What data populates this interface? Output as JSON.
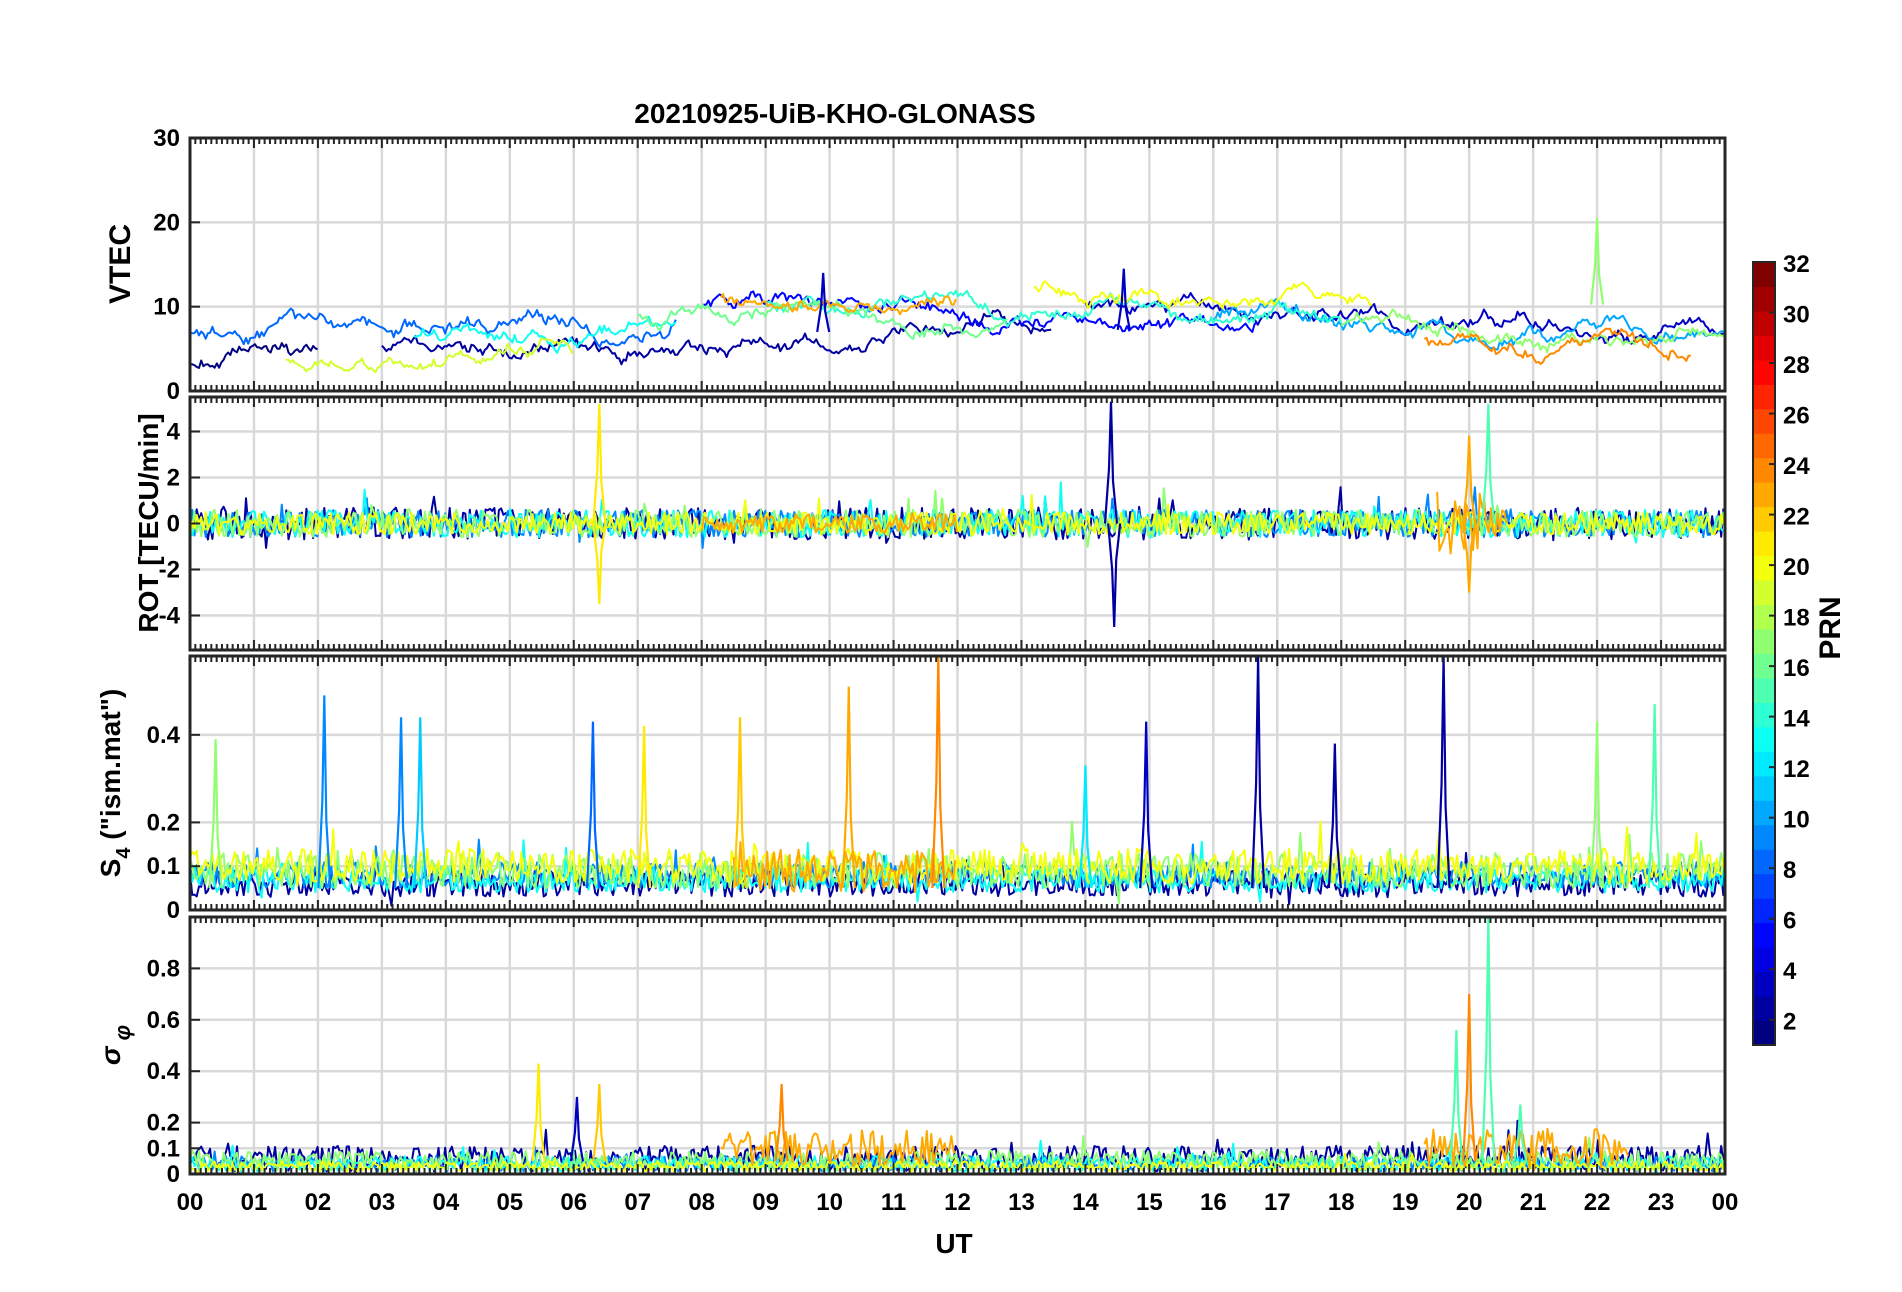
{
  "chart_data": {
    "type": "line",
    "title": "20210925-UiB-KHO-GLONASS",
    "xlabel": "UT",
    "x_tick_labels": [
      "00",
      "01",
      "02",
      "03",
      "04",
      "05",
      "06",
      "07",
      "08",
      "09",
      "10",
      "11",
      "12",
      "13",
      "14",
      "15",
      "16",
      "17",
      "18",
      "19",
      "20",
      "21",
      "22",
      "23",
      "00"
    ],
    "xlim_hours": [
      0,
      24
    ],
    "grid": true,
    "colorbar": {
      "label": "PRN",
      "range": [
        1,
        32
      ],
      "tick_labels": [
        "2",
        "4",
        "6",
        "8",
        "10",
        "12",
        "14",
        "16",
        "18",
        "20",
        "22",
        "24",
        "26",
        "28",
        "30",
        "32"
      ],
      "colormap": [
        "#00008f",
        "#0000ff",
        "#0080ff",
        "#00ffff",
        "#80ff80",
        "#ffff00",
        "#ff8000",
        "#ff0000",
        "#800000"
      ]
    },
    "panels": [
      {
        "id": "vtec",
        "ylabel": "VTEC",
        "ylim": [
          0,
          30
        ],
        "y_ticks": [
          0,
          10,
          20,
          30
        ],
        "y_tick_labels": [
          "0",
          "10",
          "20",
          "30"
        ],
        "series": [
          {
            "prn": 1,
            "kind": "smooth",
            "base": 3,
            "start": 0.0,
            "end": 2.0,
            "seed": 11
          },
          {
            "prn": 2,
            "kind": "smooth",
            "base": 5,
            "start": 3.0,
            "end": 13.5,
            "seed": 12
          },
          {
            "prn": 3,
            "kind": "smooth",
            "base": 9,
            "start": 14.0,
            "end": 24.0,
            "seed": 13
          },
          {
            "prn": 5,
            "kind": "smooth",
            "base": 8,
            "start": 8.0,
            "end": 16.7,
            "seed": 14
          },
          {
            "prn": 8,
            "kind": "smooth",
            "base": 7,
            "start": 0.0,
            "end": 7.6,
            "seed": 15
          },
          {
            "prn": 10,
            "kind": "smooth",
            "base": 8,
            "start": 16.0,
            "end": 24.0,
            "seed": 16
          },
          {
            "prn": 13,
            "kind": "smooth",
            "base": 6,
            "start": 3.5,
            "end": 7.6,
            "seed": 17
          },
          {
            "prn": 14,
            "kind": "smooth",
            "base": 8,
            "start": 9.0,
            "end": 18.0,
            "seed": 18
          },
          {
            "prn": 16,
            "kind": "smooth",
            "base": 7,
            "start": 7.0,
            "end": 12.8,
            "seed": 19
          },
          {
            "prn": 17,
            "kind": "smooth",
            "base": 7,
            "start": 18.0,
            "end": 24.0,
            "seed": 20
          },
          {
            "prn": 19,
            "kind": "smooth",
            "base": 4,
            "start": 1.5,
            "end": 6.0,
            "seed": 21
          },
          {
            "prn": 20,
            "kind": "smooth",
            "base": 11,
            "start": 13.2,
            "end": 18.5,
            "seed": 22
          },
          {
            "prn": 23,
            "kind": "smooth",
            "base": 9,
            "start": 8.3,
            "end": 12.0,
            "seed": 23
          },
          {
            "prn": 24,
            "kind": "smooth",
            "base": 6,
            "start": 19.3,
            "end": 23.5,
            "seed": 24
          }
        ],
        "spikes": [
          {
            "x": 14.6,
            "y": 14.5,
            "prn": 3
          },
          {
            "x": 22.0,
            "y": 20.5,
            "prn": 17
          },
          {
            "x": 9.9,
            "y": 14,
            "prn": 3
          }
        ]
      },
      {
        "id": "rot",
        "ylabel": "ROT [TECU/min]",
        "ylim": [
          -5.5,
          5.5
        ],
        "y_ticks": [
          -4,
          -2,
          0,
          2,
          4
        ],
        "y_tick_labels": [
          "-4",
          "-2",
          "0",
          "2",
          "4"
        ],
        "series": [
          {
            "prn": 2,
            "kind": "noise",
            "base": 0,
            "amp": 0.7,
            "start": 0.0,
            "end": 24.0,
            "seed": 31
          },
          {
            "prn": 9,
            "kind": "noise",
            "base": 0,
            "amp": 0.6,
            "start": 0.0,
            "end": 24.0,
            "seed": 32
          },
          {
            "prn": 13,
            "kind": "noise",
            "base": 0,
            "amp": 0.6,
            "start": 0.0,
            "end": 24.0,
            "seed": 33
          },
          {
            "prn": 17,
            "kind": "noise",
            "base": 0,
            "amp": 0.6,
            "start": 0.0,
            "end": 24.0,
            "seed": 34
          },
          {
            "prn": 20,
            "kind": "noise",
            "base": 0,
            "amp": 0.5,
            "start": 0.0,
            "end": 24.0,
            "seed": 35
          },
          {
            "prn": 23,
            "kind": "noise",
            "base": 0,
            "amp": 0.4,
            "start": 8.0,
            "end": 12.0,
            "seed": 36
          },
          {
            "prn": 23,
            "kind": "noise",
            "base": 0,
            "amp": 1.4,
            "start": 19.5,
            "end": 20.6,
            "seed": 37
          }
        ],
        "spikes": [
          {
            "x": 6.4,
            "y": 5.2,
            "prn": 21
          },
          {
            "x": 6.4,
            "y": -3.5,
            "prn": 21
          },
          {
            "x": 14.4,
            "y": 5.3,
            "prn": 2
          },
          {
            "x": 14.45,
            "y": -4.5,
            "prn": 2
          },
          {
            "x": 20.3,
            "y": 5.2,
            "prn": 15
          },
          {
            "x": 20.0,
            "y": -3.0,
            "prn": 23
          },
          {
            "x": 20.0,
            "y": 3.8,
            "prn": 23
          }
        ]
      },
      {
        "id": "s4",
        "ylabel": "S4 (\"ism.mat\")",
        "ylim": [
          0,
          0.58
        ],
        "y_ticks": [
          0,
          0.1,
          0.2,
          0.4
        ],
        "y_tick_labels": [
          "0",
          "0.1",
          "0.2",
          "0.4"
        ],
        "series": [
          {
            "prn": 2,
            "kind": "noise",
            "base": 0.06,
            "amp": 0.03,
            "start": 0.0,
            "end": 24.0,
            "seed": 41
          },
          {
            "prn": 9,
            "kind": "noise",
            "base": 0.08,
            "amp": 0.03,
            "start": 0.0,
            "end": 24.0,
            "seed": 42
          },
          {
            "prn": 13,
            "kind": "noise",
            "base": 0.07,
            "amp": 0.03,
            "start": 0.0,
            "end": 24.0,
            "seed": 43
          },
          {
            "prn": 17,
            "kind": "noise",
            "base": 0.09,
            "amp": 0.04,
            "start": 0.0,
            "end": 24.0,
            "seed": 44
          },
          {
            "prn": 20,
            "kind": "noise",
            "base": 0.1,
            "amp": 0.04,
            "start": 0.0,
            "end": 24.0,
            "seed": 45
          },
          {
            "prn": 23,
            "kind": "noise",
            "base": 0.09,
            "amp": 0.05,
            "start": 8.5,
            "end": 12.0,
            "seed": 46
          }
        ],
        "spikes": [
          {
            "x": 0.4,
            "y": 0.39,
            "prn": 17
          },
          {
            "x": 2.1,
            "y": 0.49,
            "prn": 9
          },
          {
            "x": 3.3,
            "y": 0.44,
            "prn": 9
          },
          {
            "x": 3.6,
            "y": 0.44,
            "prn": 11
          },
          {
            "x": 6.3,
            "y": 0.43,
            "prn": 8
          },
          {
            "x": 7.1,
            "y": 0.42,
            "prn": 21
          },
          {
            "x": 8.6,
            "y": 0.44,
            "prn": 22
          },
          {
            "x": 10.3,
            "y": 0.51,
            "prn": 23
          },
          {
            "x": 11.7,
            "y": 0.58,
            "prn": 24
          },
          {
            "x": 14.0,
            "y": 0.33,
            "prn": 12
          },
          {
            "x": 14.95,
            "y": 0.43,
            "prn": 3
          },
          {
            "x": 16.7,
            "y": 0.58,
            "prn": 2
          },
          {
            "x": 17.9,
            "y": 0.38,
            "prn": 2
          },
          {
            "x": 19.6,
            "y": 0.58,
            "prn": 2
          },
          {
            "x": 22.0,
            "y": 0.43,
            "prn": 17
          },
          {
            "x": 22.9,
            "y": 0.47,
            "prn": 15
          }
        ]
      },
      {
        "id": "sigma",
        "ylabel": "σ φ",
        "ylim": [
          0,
          1.0
        ],
        "y_ticks": [
          0,
          0.1,
          0.2,
          0.4,
          0.6,
          0.8
        ],
        "y_tick_labels": [
          "0",
          "0.1",
          "0.2",
          "0.4",
          "0.6",
          "0.8"
        ],
        "series": [
          {
            "prn": 2,
            "kind": "noise",
            "base": 0.06,
            "amp": 0.05,
            "start": 0.0,
            "end": 24.0,
            "seed": 51
          },
          {
            "prn": 9,
            "kind": "noise",
            "base": 0.04,
            "amp": 0.03,
            "start": 0.0,
            "end": 24.0,
            "seed": 52
          },
          {
            "prn": 13,
            "kind": "noise",
            "base": 0.04,
            "amp": 0.03,
            "start": 0.0,
            "end": 24.0,
            "seed": 53
          },
          {
            "prn": 17,
            "kind": "noise",
            "base": 0.05,
            "amp": 0.04,
            "start": 0.0,
            "end": 24.0,
            "seed": 54
          },
          {
            "prn": 20,
            "kind": "noise",
            "base": 0.03,
            "amp": 0.02,
            "start": 0.0,
            "end": 24.0,
            "seed": 55
          },
          {
            "prn": 23,
            "kind": "noise",
            "base": 0.1,
            "amp": 0.07,
            "start": 8.3,
            "end": 12.0,
            "seed": 56
          },
          {
            "prn": 23,
            "kind": "noise",
            "base": 0.1,
            "amp": 0.08,
            "start": 19.3,
            "end": 22.5,
            "seed": 57
          }
        ],
        "spikes": [
          {
            "x": 5.45,
            "y": 0.43,
            "prn": 21
          },
          {
            "x": 6.4,
            "y": 0.35,
            "prn": 22
          },
          {
            "x": 6.05,
            "y": 0.3,
            "prn": 3
          },
          {
            "x": 9.25,
            "y": 0.35,
            "prn": 24
          },
          {
            "x": 19.8,
            "y": 0.56,
            "prn": 15
          },
          {
            "x": 20.0,
            "y": 0.7,
            "prn": 24
          },
          {
            "x": 20.3,
            "y": 1.0,
            "prn": 15
          },
          {
            "x": 20.8,
            "y": 0.27,
            "prn": 15
          }
        ]
      }
    ]
  }
}
